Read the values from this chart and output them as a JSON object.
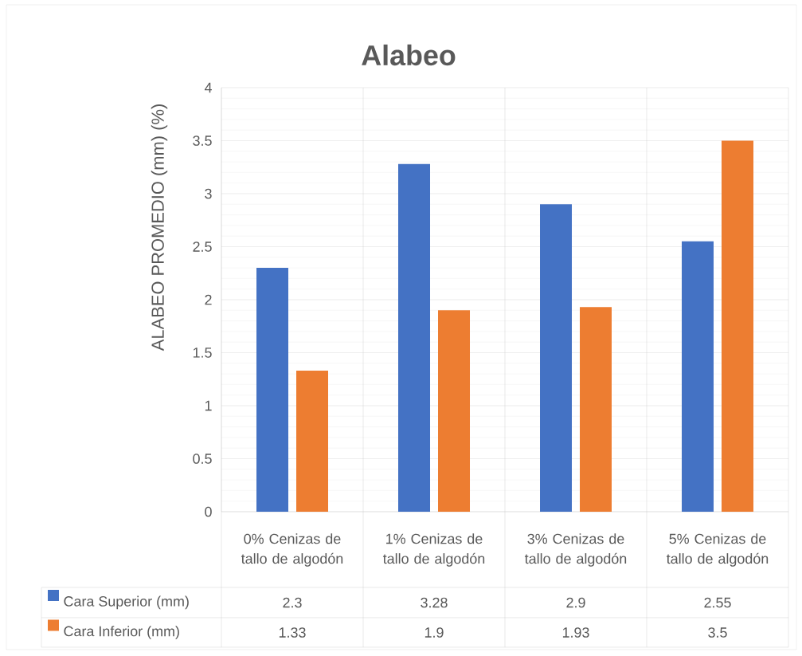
{
  "chart_data": {
    "type": "bar",
    "title": "Alabeo",
    "ylabel": "ALABEO PROMEDIO (mm) (%)",
    "categories": [
      "0% Cenizas de tallo de algodón",
      "1% Cenizas de tallo de algodón",
      "3% Cenizas de tallo de algodón",
      "5% Cenizas de tallo de algodón"
    ],
    "series": [
      {
        "name": "Cara Superior (mm)",
        "color": "#4472c4",
        "values": [
          2.3,
          3.28,
          2.9,
          2.55
        ]
      },
      {
        "name": "Cara Inferior (mm)",
        "color": "#ed7d31",
        "values": [
          1.33,
          1.9,
          1.93,
          3.5
        ]
      }
    ],
    "ylim": [
      0,
      4
    ],
    "yticks": [
      0,
      0.5,
      1,
      1.5,
      2,
      2.5,
      3,
      3.5,
      4
    ],
    "grid": "y",
    "legend": "bottom",
    "data_labels": true
  }
}
